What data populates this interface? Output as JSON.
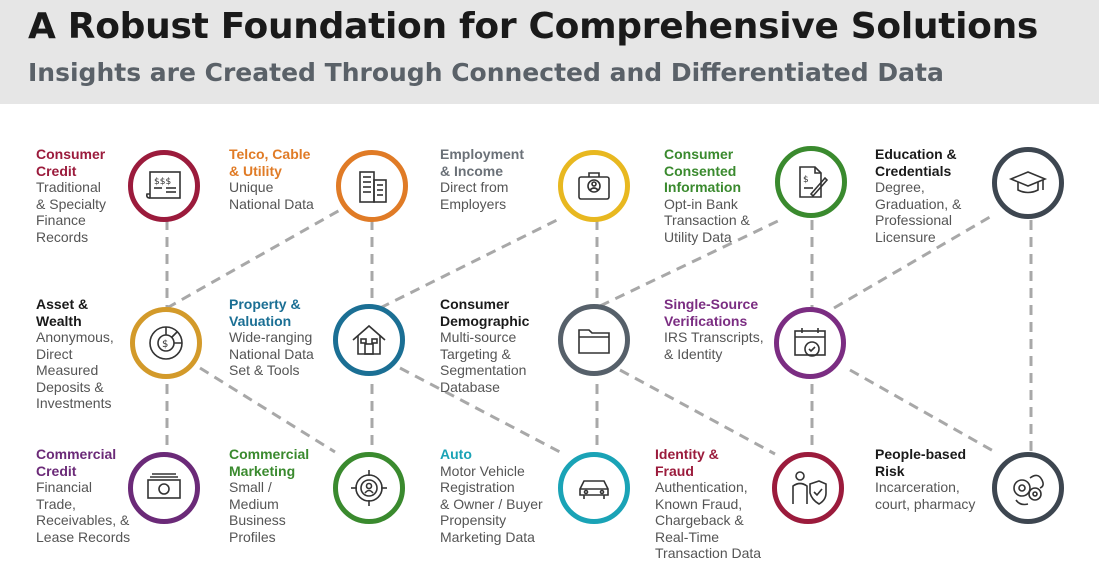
{
  "title": "A Robust Foundation for Comprehensive Solutions",
  "subtitle": "Insights are Created Through Connected and Differentiated Data",
  "nodes": [
    {
      "id": "consumer-credit",
      "label": "Consumer\nCredit",
      "desc": "Traditional\n& Specialty\nFinance\nRecords",
      "color": "#9b1b3c",
      "icon": "credit-report-icon"
    },
    {
      "id": "telco",
      "label": "Telco, Cable\n& Utility",
      "desc": "Unique\nNational Data",
      "color": "#e07b26",
      "icon": "building-icon"
    },
    {
      "id": "employment",
      "label": "Employment\n& Income",
      "desc": "Direct from\nEmployers",
      "color": "#6b7178",
      "icon": "briefcase-icon"
    },
    {
      "id": "consented",
      "label": "Consumer\nConsented\nInformation",
      "desc": "Opt-in Bank\nTransaction &\nUtility Data",
      "color": "#3a8a2e",
      "icon": "document-pen-icon"
    },
    {
      "id": "education",
      "label": "Education &\nCredentials",
      "desc": "Degree,\nGraduation, &\nProfessional\nLicensure",
      "color": "#1a1a1a",
      "icon": "graduation-cap-icon"
    },
    {
      "id": "asset",
      "label": "Asset &\nWealth",
      "desc": "Anonymous,\nDirect\nMeasured\nDeposits &\nInvestments",
      "color": "#1a1a1a",
      "icon": "dollar-pie-icon"
    },
    {
      "id": "property",
      "label": "Property &\nValuation",
      "desc": "Wide-ranging\nNational Data\nSet & Tools",
      "color": "#1b6f94",
      "icon": "house-icon"
    },
    {
      "id": "demographic",
      "label": "Consumer\nDemographic",
      "desc": "Multi-source\nTargeting &\nSegmentation\nDatabase",
      "color": "#1a1a1a",
      "icon": "folder-icon"
    },
    {
      "id": "verifications",
      "label": "Single-Source\nVerifications",
      "desc": "IRS Transcripts,\n& Identity",
      "color": "#7b2d82",
      "icon": "calendar-check-icon"
    },
    {
      "id": "commercial-credit",
      "label": "Commercial\nCredit",
      "desc": "Financial\nTrade,\nReceivables, &\nLease Records",
      "color": "#6b2a78",
      "icon": "banknote-icon"
    },
    {
      "id": "commercial-marketing",
      "label": "Commercial\nMarketing",
      "desc": "Small /\nMedium\nBusiness\nProfiles",
      "color": "#3a8a2e",
      "icon": "target-person-icon"
    },
    {
      "id": "auto",
      "label": "Auto",
      "desc": "Motor Vehicle\nRegistration\n& Owner / Buyer\nPropensity\nMarketing Data",
      "color": "#1aa3b6",
      "icon": "car-icon"
    },
    {
      "id": "identity",
      "label": "Identity &\nFraud",
      "desc": "Authentication,\nKnown Fraud,\nChargeback &\nReal-Time\nTransaction Data",
      "color": "#9b1b3c",
      "icon": "person-shield-icon"
    },
    {
      "id": "people-risk",
      "label": "People-based\nRisk",
      "desc": "Incarceration,\ncourt, pharmacy",
      "color": "#1a1a1a",
      "icon": "people-gears-icon"
    }
  ]
}
